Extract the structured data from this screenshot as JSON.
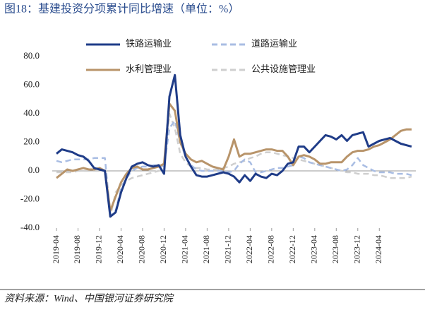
{
  "chart_data": {
    "type": "line",
    "title": "图18：基建投资分项累计同比增速（单位：%）",
    "source": "资料来源：Wind、中国银河证券研究院",
    "categories": [
      "2019-04",
      null,
      null,
      null,
      "2019-08",
      null,
      null,
      null,
      "2019-12",
      null,
      null,
      null,
      "2020-04",
      null,
      null,
      null,
      "2020-08",
      null,
      null,
      null,
      "2020-12",
      null,
      null,
      null,
      "2021-04",
      null,
      null,
      null,
      "2021-08",
      null,
      null,
      null,
      "2021-12",
      null,
      null,
      null,
      "2022-04",
      null,
      null,
      null,
      "2022-08",
      null,
      null,
      null,
      "2022-12",
      null,
      null,
      null,
      "2023-04",
      null,
      null,
      null,
      "2023-08",
      null,
      null,
      null,
      "2023-12",
      null,
      null,
      null,
      "2024-04",
      null,
      null,
      null,
      null,
      null,
      null
    ],
    "series": [
      {
        "name": "铁路运输业",
        "color": "#1f3c88",
        "dash": false,
        "values": [
          12,
          15,
          14,
          13,
          11,
          10,
          7,
          2,
          1,
          0,
          -32,
          -29,
          -15,
          -5,
          3,
          5,
          6,
          4,
          3,
          4,
          -2,
          52,
          67,
          25,
          10,
          3,
          -3,
          -4,
          -4,
          -3,
          -2,
          -1,
          -2,
          -4,
          -8,
          -3,
          -7,
          -2,
          -4,
          -5,
          -2,
          -3,
          0,
          5,
          6,
          17,
          17,
          13,
          17,
          21,
          25,
          24,
          22,
          25,
          21,
          25,
          26,
          27,
          17,
          19,
          21,
          22,
          23,
          21,
          19,
          18,
          17
        ]
      },
      {
        "name": "道路运输业",
        "color": "#a9bde3",
        "dash": true,
        "values": [
          7,
          6,
          7,
          8,
          8,
          8,
          8,
          9,
          9,
          9,
          -30,
          -28,
          -12,
          -5,
          0,
          2,
          3,
          3,
          4,
          4,
          3,
          30,
          35,
          20,
          10,
          4,
          1,
          0,
          0,
          0,
          0,
          0,
          -1,
          0,
          5,
          8,
          6,
          -1,
          -1,
          0,
          1,
          2,
          2,
          3,
          4,
          10,
          9,
          6,
          5,
          4,
          3,
          2,
          1,
          0,
          1,
          4,
          9,
          4,
          2,
          0,
          -1,
          -1,
          -1,
          -2,
          -2,
          -2,
          -3
        ]
      },
      {
        "name": "水利管理业",
        "color": "#b8946a",
        "dash": false,
        "values": [
          -5,
          -2,
          1,
          0,
          1,
          2,
          1,
          1,
          2,
          0,
          -28,
          -18,
          -8,
          -2,
          2,
          3,
          1,
          1,
          2,
          3,
          5,
          47,
          42,
          20,
          12,
          8,
          6,
          7,
          5,
          3,
          2,
          1,
          10,
          22,
          10,
          12,
          12,
          13,
          14,
          15,
          15,
          14,
          14,
          10,
          4,
          10,
          11,
          10,
          8,
          5,
          5,
          6,
          6,
          6,
          10,
          13,
          14,
          14,
          15,
          17,
          18,
          20,
          22,
          25,
          28,
          29,
          29
        ]
      },
      {
        "name": "公共设施管理业",
        "color": "#cfcfcf",
        "dash": true,
        "values": [
          -1,
          -1,
          -1,
          -1,
          0,
          0,
          0,
          0,
          0,
          0,
          -32,
          -15,
          -10,
          -7,
          -5,
          -4,
          -3,
          -2,
          -1,
          0,
          1,
          40,
          30,
          12,
          6,
          3,
          2,
          2,
          1,
          1,
          1,
          2,
          3,
          5,
          6,
          7,
          9,
          10,
          12,
          13,
          13,
          12,
          11,
          10,
          9,
          8,
          7,
          6,
          5,
          4,
          3,
          2,
          1,
          0,
          -1,
          -1,
          -2,
          -2,
          -2,
          -3,
          -3,
          -4,
          -5,
          -5,
          -5,
          -5,
          -4
        ]
      }
    ],
    "ylim": [
      -40,
      80
    ],
    "yticks": [
      {
        "value": -40,
        "label": "-40.0"
      },
      {
        "value": -20,
        "label": "-20.0"
      },
      {
        "value": 0,
        "label": "0.0"
      },
      {
        "value": 20,
        "label": "20.0"
      },
      {
        "value": 40,
        "label": "40.0"
      },
      {
        "value": 60,
        "label": "60.0"
      },
      {
        "value": 80,
        "label": "80.0"
      }
    ]
  }
}
